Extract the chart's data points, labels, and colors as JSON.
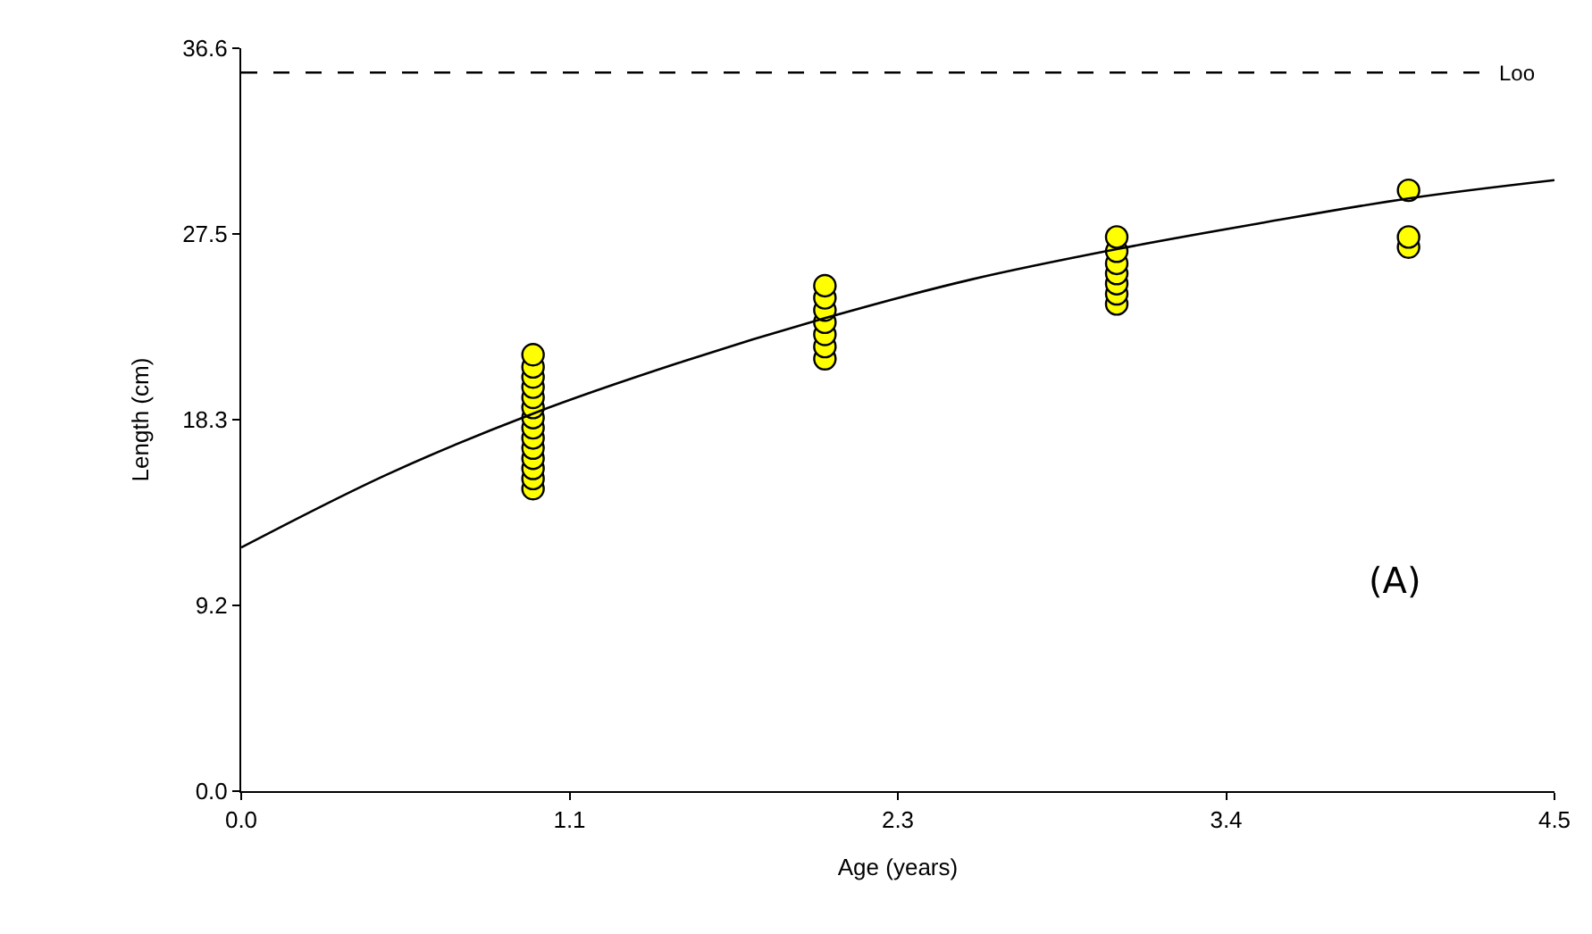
{
  "chart_data": {
    "type": "scatter",
    "xlabel": "Age (years)",
    "ylabel": "Length (cm)",
    "xlim": [
      0,
      4.5
    ],
    "ylim": [
      0,
      36.6
    ],
    "xticks": [
      {
        "value": 0,
        "label": "0.0"
      },
      {
        "value": 1.125,
        "label": "1.1"
      },
      {
        "value": 2.25,
        "label": "2.3"
      },
      {
        "value": 3.375,
        "label": "3.4"
      },
      {
        "value": 4.5,
        "label": "4.5"
      }
    ],
    "yticks": [
      {
        "value": 0,
        "label": "0.0"
      },
      {
        "value": 9.15,
        "label": "9.2"
      },
      {
        "value": 18.3,
        "label": "18.3"
      },
      {
        "value": 27.45,
        "label": "27.5"
      },
      {
        "value": 36.6,
        "label": "36.6"
      }
    ],
    "series": [
      {
        "marker": "circle",
        "color": "#ffff00",
        "x": [
          1,
          1,
          1,
          1,
          1,
          1,
          1,
          1,
          1,
          1,
          1,
          1,
          1,
          1,
          2,
          2,
          2,
          2,
          2,
          2,
          2,
          3,
          3,
          3,
          3,
          3,
          3,
          3,
          4,
          4,
          4
        ],
        "values": [
          14.9,
          15.4,
          15.9,
          16.4,
          16.9,
          17.4,
          17.9,
          18.4,
          18.9,
          19.4,
          19.9,
          20.4,
          20.9,
          21.5,
          21.3,
          21.9,
          22.5,
          23.1,
          23.7,
          24.3,
          24.9,
          24.0,
          24.5,
          25.0,
          25.5,
          26.0,
          26.6,
          27.3,
          26.8,
          27.3,
          29.6
        ]
      },
      {
        "type": "line",
        "marker": "none",
        "color": "#000000",
        "line_style": "solid",
        "x": [
          0,
          0.5,
          1,
          1.5,
          2,
          2.5,
          3,
          3.5,
          4,
          4.5
        ],
        "values": [
          12.0,
          15.6,
          18.6,
          21.1,
          23.3,
          25.2,
          26.7,
          28.0,
          29.2,
          30.1
        ]
      }
    ],
    "ref_lines": [
      {
        "axis": "y",
        "value": 35.4,
        "label": "Loo",
        "color": "#000000",
        "line_style": "dashed"
      }
    ],
    "annotations": [
      "(A)"
    ]
  }
}
